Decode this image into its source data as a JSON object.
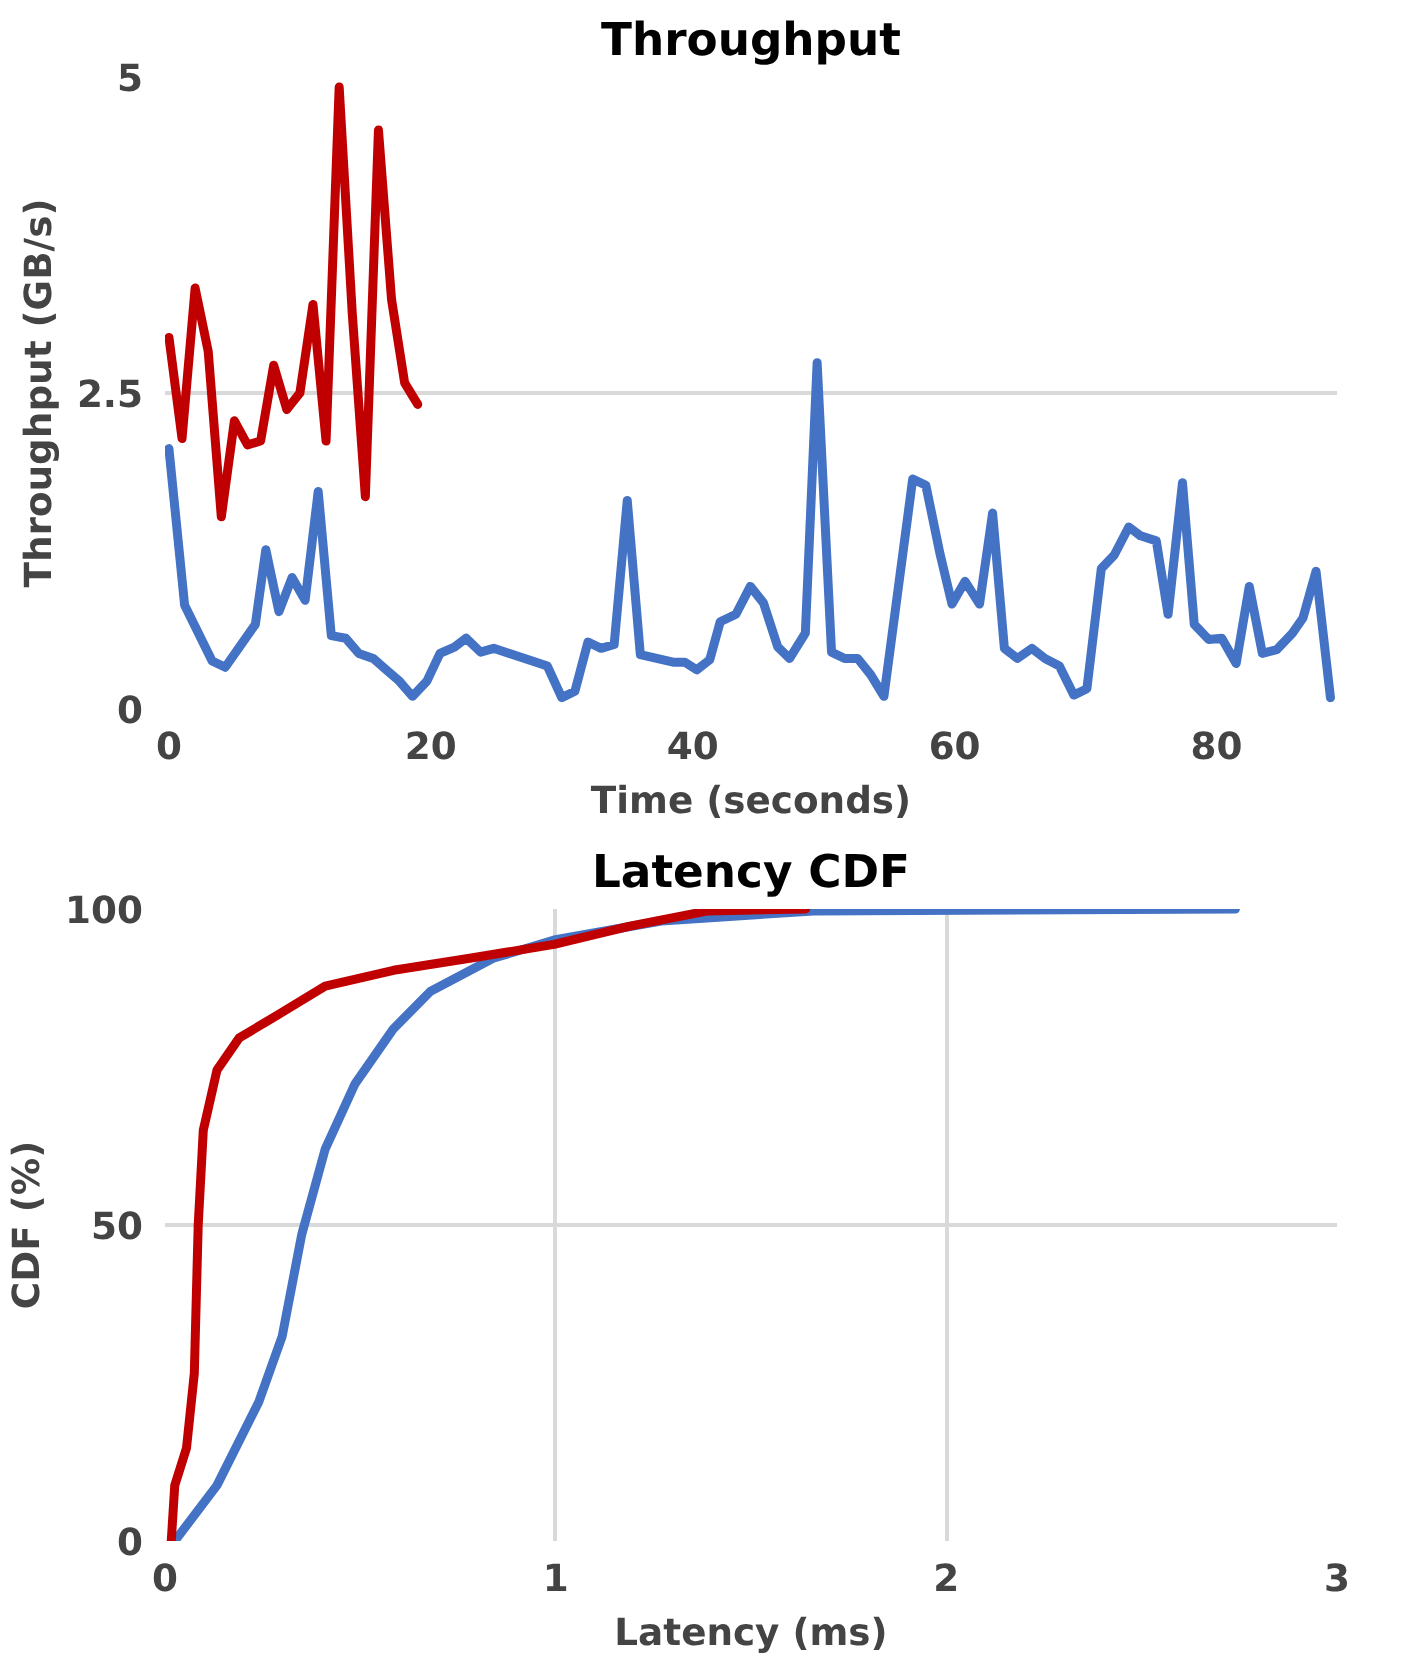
{
  "chart_data": [
    {
      "type": "line",
      "title": "Throughput",
      "xlabel": "Time (seconds)",
      "ylabel": "Throughput (GB/s)",
      "xlim": [
        -0.3,
        89.2
      ],
      "ylim": [
        0,
        5
      ],
      "xticks": [
        0,
        20,
        40,
        60,
        80
      ],
      "yticks": [
        0,
        {
          "value": 2.5,
          "label": "2.5"
        },
        5
      ],
      "grid": "y",
      "marker": "none",
      "line_style": "solid",
      "series": [
        {
          "color": "#4472c4",
          "x": [
            0,
            1.2,
            3.3,
            4.3,
            6.6,
            7.4,
            8.4,
            9.4,
            10.4,
            11.4,
            12.4,
            13.5,
            14.5,
            15.6,
            16.6,
            17.6,
            18.6,
            19.7,
            20.7,
            21.8,
            22.7,
            23.8,
            24.8,
            28.9,
            30,
            31,
            32,
            33,
            34,
            35,
            36,
            38.5,
            39.4,
            40.3,
            41.3,
            42.1,
            43.3,
            44.4,
            45.4,
            46.5,
            47.4,
            48.6,
            49.5,
            50.6,
            51.6,
            52.6,
            53.6,
            54.6,
            56.8,
            57.8,
            58.9,
            59.8,
            60.8,
            61.9,
            62.9,
            63.8,
            64.8,
            65.9,
            66.9,
            68,
            69.1,
            70.1,
            71.2,
            72.2,
            73.3,
            74.2,
            75.4,
            76.3,
            77.4,
            78.3,
            79.4,
            80.4,
            81.5,
            82.5,
            83.5,
            84.6,
            85.8,
            86.6,
            87.6,
            88.7
          ],
          "values": [
            2.06,
            0.82,
            0.38,
            0.33,
            0.67,
            1.26,
            0.77,
            1.04,
            0.86,
            1.72,
            0.58,
            0.56,
            0.44,
            0.4,
            0.31,
            0.22,
            0.1,
            0.22,
            0.44,
            0.49,
            0.56,
            0.45,
            0.48,
            0.34,
            0.09,
            0.14,
            0.53,
            0.48,
            0.51,
            1.65,
            0.43,
            0.37,
            0.37,
            0.31,
            0.39,
            0.69,
            0.75,
            0.97,
            0.84,
            0.49,
            0.4,
            0.6,
            2.74,
            0.45,
            0.4,
            0.4,
            0.27,
            0.1,
            1.82,
            1.77,
            1.22,
            0.83,
            1.01,
            0.83,
            1.55,
            0.48,
            0.4,
            0.48,
            0.4,
            0.34,
            0.11,
            0.16,
            1.11,
            1.22,
            1.44,
            1.37,
            1.33,
            0.75,
            1.79,
            0.67,
            0.55,
            0.56,
            0.36,
            0.97,
            0.44,
            0.47,
            0.6,
            0.72,
            1.09,
            0.09
          ]
        },
        {
          "color": "#c00000",
          "x": [
            0,
            1,
            2,
            3,
            4,
            5,
            6,
            7,
            8,
            9,
            10,
            11,
            12,
            13,
            14,
            15,
            16,
            17,
            18,
            19
          ],
          "values": [
            2.94,
            2.14,
            3.33,
            2.83,
            1.52,
            2.28,
            2.09,
            2.12,
            2.72,
            2.37,
            2.5,
            3.2,
            2.12,
            4.92,
            3.13,
            1.68,
            4.58,
            3.24,
            2.58,
            2.41
          ]
        }
      ]
    },
    {
      "type": "line",
      "title": "Latency CDF",
      "xlabel": "Latency (ms)",
      "ylabel": "CDF (%)",
      "xlim": [
        0,
        3
      ],
      "ylim": [
        0,
        100
      ],
      "xticks": [
        0,
        1,
        2,
        3
      ],
      "yticks": [
        0,
        50,
        100
      ],
      "grid": true,
      "marker": "none",
      "line_style": "solid",
      "series": [
        {
          "color": "#4472c4",
          "x": [
            0.025,
            0.133,
            0.24,
            0.3,
            0.35,
            0.41,
            0.486,
            0.584,
            0.68,
            0.84,
            0.996,
            1.27,
            1.66,
            2.74
          ],
          "values": [
            0,
            8.8,
            22,
            32.4,
            48.5,
            62,
            72.3,
            81,
            87,
            92.2,
            95.1,
            98.1,
            99.7,
            100
          ]
        },
        {
          "color": "#c00000",
          "x": [
            0.016,
            0.025,
            0.055,
            0.075,
            0.085,
            0.098,
            0.133,
            0.19,
            0.29,
            0.41,
            0.585,
            0.78,
            0.996,
            1.19,
            1.39,
            1.64
          ],
          "values": [
            0,
            8.8,
            14.7,
            26.5,
            50,
            65,
            74.5,
            79.6,
            83.3,
            87.8,
            90.3,
            92.2,
            94.4,
            97.3,
            99.7,
            100
          ]
        }
      ]
    }
  ]
}
